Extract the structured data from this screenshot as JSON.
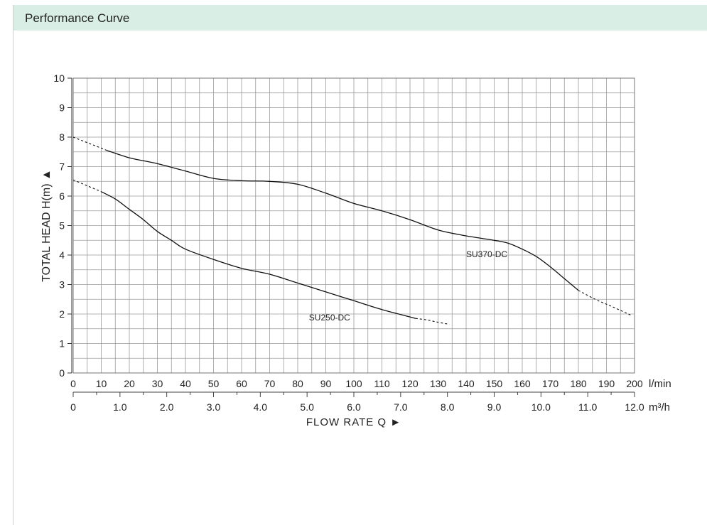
{
  "panel": {
    "title": "Performance Curve"
  },
  "chart_data": {
    "type": "line",
    "ylabel": "TOTAL HEAD H(m) ▲",
    "xlabel": "FLOW RATE Q ►",
    "ylim": [
      0,
      10
    ],
    "xlim": [
      0,
      200
    ],
    "x_unit": "l/min",
    "x2_unit": "m³/h",
    "yticks": [
      "0",
      "1",
      "2",
      "3",
      "4",
      "5",
      "6",
      "7",
      "8",
      "9",
      "10"
    ],
    "xticks": [
      "0",
      "10",
      "20",
      "30",
      "40",
      "50",
      "60",
      "70",
      "80",
      "90",
      "100",
      "110",
      "120",
      "130",
      "140",
      "150",
      "160",
      "170",
      "180",
      "190",
      "200"
    ],
    "x2ticks": [
      {
        "x": 0,
        "label": "0"
      },
      {
        "x": 16.67,
        "label": "1.0"
      },
      {
        "x": 33.33,
        "label": "2.0"
      },
      {
        "x": 50,
        "label": "3.0"
      },
      {
        "x": 66.67,
        "label": "4.0"
      },
      {
        "x": 83.33,
        "label": "5.0"
      },
      {
        "x": 100,
        "label": "6.0"
      },
      {
        "x": 116.67,
        "label": "7.0"
      },
      {
        "x": 133.33,
        "label": "8.0"
      },
      {
        "x": 150,
        "label": "9.0"
      },
      {
        "x": 166.67,
        "label": "10.0"
      },
      {
        "x": 183.33,
        "label": "11.0"
      },
      {
        "x": 200,
        "label": "12.0"
      }
    ],
    "grid": true,
    "series": [
      {
        "name": "SU370-DC",
        "color": "#111111",
        "dashed_start": [
          [
            0,
            8.0
          ],
          [
            4,
            7.85
          ],
          [
            8,
            7.7
          ],
          [
            12,
            7.55
          ]
        ],
        "solid": [
          [
            12,
            7.55
          ],
          [
            20,
            7.3
          ],
          [
            30,
            7.1
          ],
          [
            40,
            6.85
          ],
          [
            50,
            6.6
          ],
          [
            60,
            6.52
          ],
          [
            70,
            6.5
          ],
          [
            80,
            6.4
          ],
          [
            90,
            6.1
          ],
          [
            100,
            5.75
          ],
          [
            110,
            5.5
          ],
          [
            120,
            5.2
          ],
          [
            130,
            4.85
          ],
          [
            140,
            4.65
          ],
          [
            150,
            4.5
          ],
          [
            155,
            4.4
          ],
          [
            160,
            4.2
          ],
          [
            165,
            3.95
          ],
          [
            170,
            3.6
          ],
          [
            175,
            3.2
          ],
          [
            180,
            2.8
          ]
        ],
        "dashed_end": [
          [
            180,
            2.8
          ],
          [
            186,
            2.5
          ],
          [
            192,
            2.25
          ],
          [
            199,
            1.95
          ]
        ]
      },
      {
        "name": "SU250-DC",
        "color": "#111111",
        "dashed_start": [
          [
            0,
            6.55
          ],
          [
            5,
            6.35
          ],
          [
            10,
            6.15
          ]
        ],
        "solid": [
          [
            10,
            6.15
          ],
          [
            15,
            5.9
          ],
          [
            20,
            5.55
          ],
          [
            25,
            5.2
          ],
          [
            30,
            4.8
          ],
          [
            35,
            4.5
          ],
          [
            40,
            4.2
          ],
          [
            50,
            3.85
          ],
          [
            60,
            3.55
          ],
          [
            70,
            3.35
          ],
          [
            80,
            3.05
          ],
          [
            90,
            2.75
          ],
          [
            100,
            2.45
          ],
          [
            110,
            2.15
          ],
          [
            120,
            1.9
          ],
          [
            122,
            1.85
          ]
        ],
        "dashed_end": [
          [
            122,
            1.85
          ],
          [
            126,
            1.8
          ],
          [
            130,
            1.72
          ],
          [
            134,
            1.65
          ]
        ]
      }
    ]
  }
}
